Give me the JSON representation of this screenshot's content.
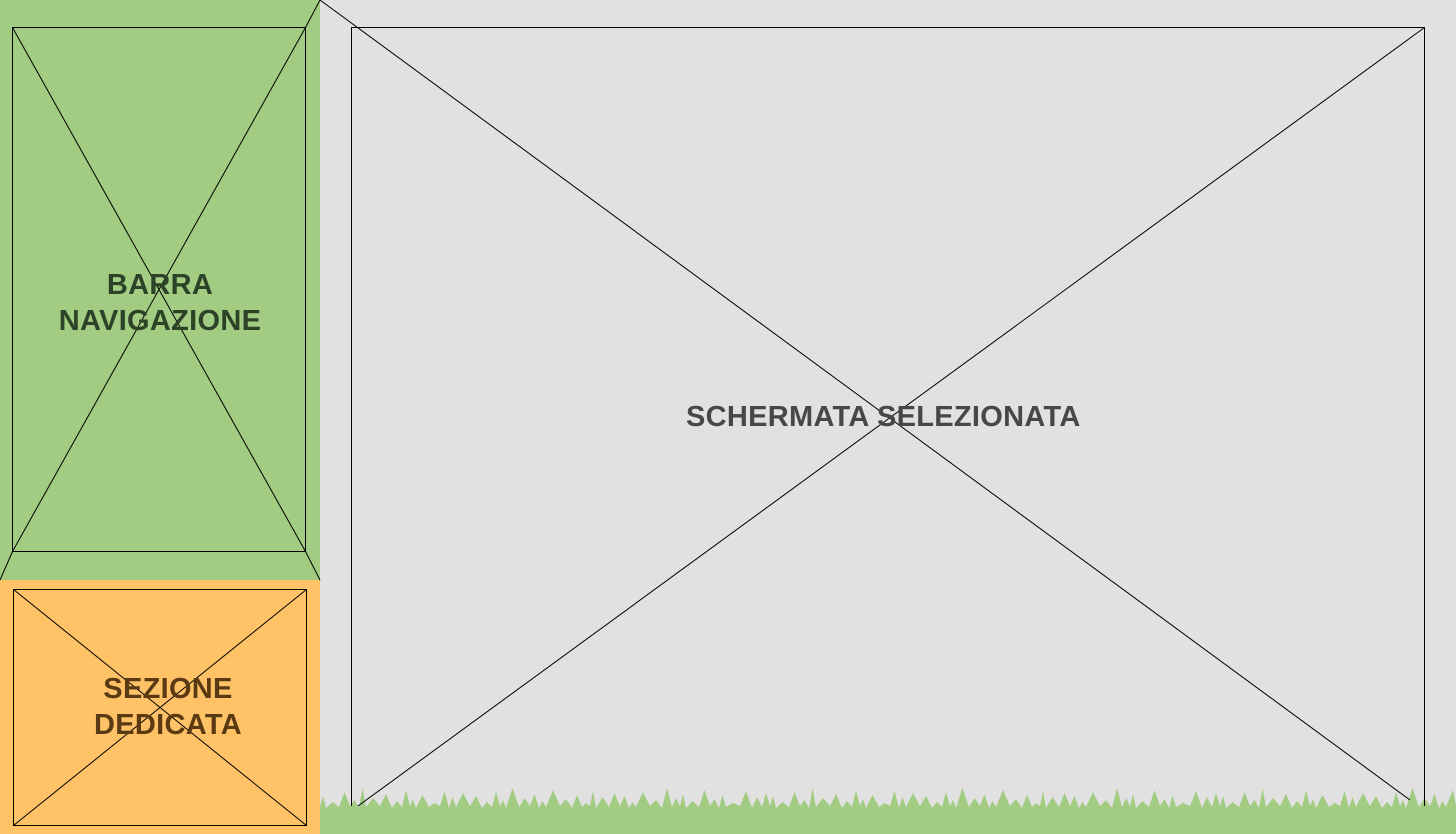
{
  "nav": {
    "label_line1": "BARRA",
    "label_line2": "NAVIGAZIONE",
    "color": "#a3cc83"
  },
  "section": {
    "label_line1": "SEZIONE",
    "label_line2": "DEDICATA",
    "color": "#ffc266"
  },
  "main": {
    "label": "SCHERMATA SELEZIONATA",
    "color": "#e1e1e1"
  },
  "grass": {
    "color": "#a3cc83"
  }
}
